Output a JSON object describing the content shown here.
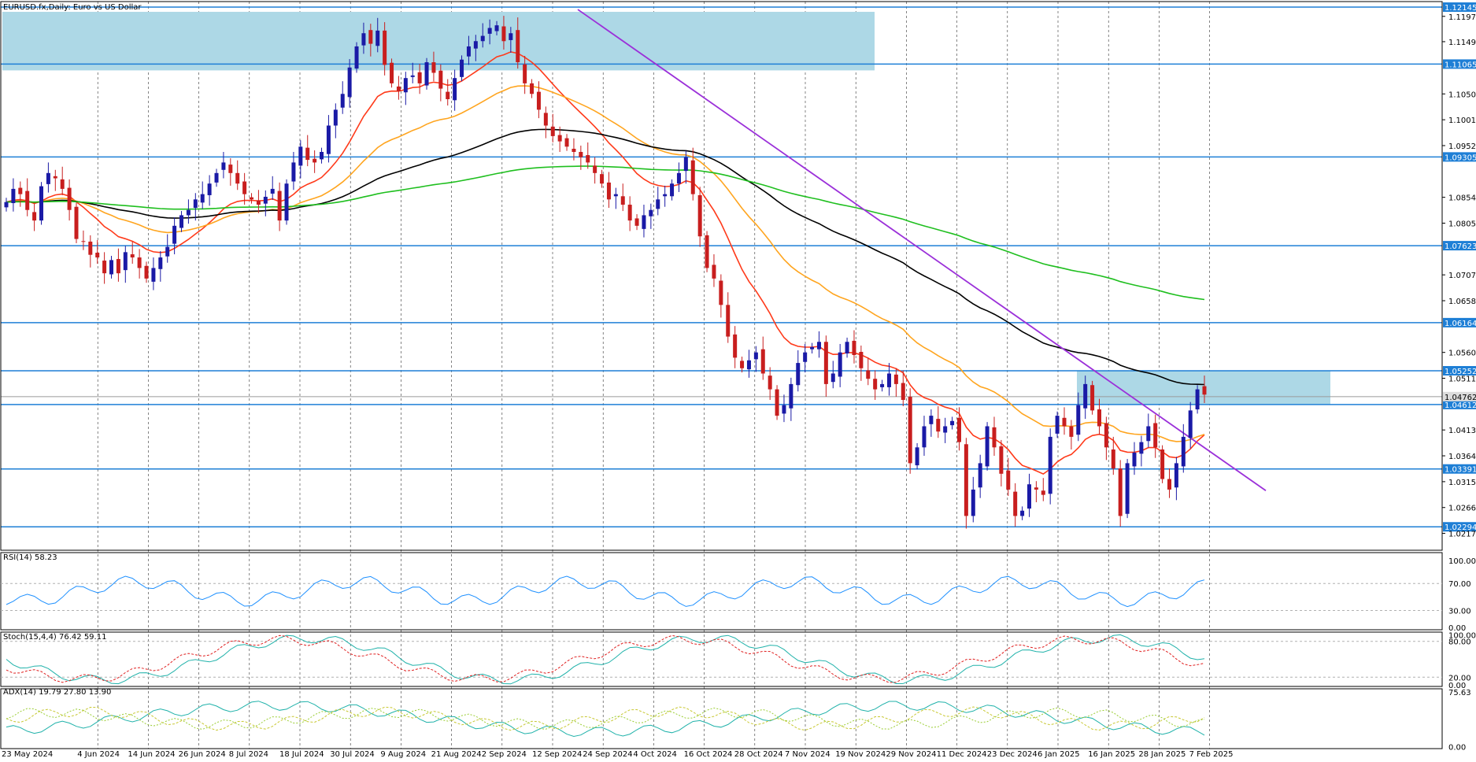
{
  "chart_data": {
    "type": "candlestick",
    "title": "EURUSD.fx,Daily:  Euro vs US Dollar",
    "x_tick_labels": [
      "23 May 2024",
      "4 Jun 2024",
      "14 Jun 2024",
      "26 Jun 2024",
      "8 Jul 2024",
      "18 Jul 2024",
      "30 Jul 2024",
      "9 Aug 2024",
      "21 Aug 2024",
      "2 Sep 2024",
      "12 Sep 2024",
      "24 Sep 2024",
      "4 Oct 2024",
      "16 Oct 2024",
      "28 Oct 2024",
      "7 Nov 2024",
      "19 Nov 2024",
      "29 Nov 2024",
      "11 Dec 2024",
      "23 Dec 2024",
      "6 Jan 2025",
      "16 Jan 2025",
      "28 Jan 2025",
      "7 Feb 2025"
    ],
    "y_ticks": [
      "1.11970",
      "1.11490",
      "1.10500",
      "1.10010",
      "1.09520",
      "1.08540",
      "1.08050",
      "1.07070",
      "1.06580",
      "1.05600",
      "1.05110",
      "1.04130",
      "1.03640",
      "1.03150",
      "1.02660",
      "1.02170"
    ],
    "y_range": [
      1.0185,
      1.1225
    ],
    "levels": [
      "1.12145",
      "1.11065",
      "1.09305",
      "1.07623",
      "1.06164",
      "1.05252",
      "1.04612",
      "1.03391",
      "1.02294"
    ],
    "current_price": "1.04762",
    "closes": [
      1.0845,
      1.087,
      1.086,
      1.083,
      1.081,
      1.0875,
      1.09,
      1.089,
      1.087,
      1.083,
      1.0775,
      1.077,
      1.0745,
      1.074,
      1.071,
      1.0735,
      1.071,
      1.075,
      1.074,
      1.072,
      1.07,
      1.072,
      1.074,
      1.076,
      1.08,
      1.082,
      1.083,
      1.085,
      1.086,
      1.088,
      1.09,
      1.092,
      1.09,
      1.088,
      1.086,
      1.085,
      1.084,
      1.0855,
      1.087,
      1.081,
      1.088,
      1.092,
      1.095,
      1.0925,
      1.092,
      1.094,
      1.099,
      1.102,
      1.105,
      1.11,
      1.114,
      1.1165,
      1.1145,
      1.117,
      1.1105,
      1.107,
      1.1055,
      1.108,
      1.1085,
      1.107,
      1.111,
      1.109,
      1.106,
      1.104,
      1.108,
      1.1115,
      1.114,
      1.115,
      1.116,
      1.1175,
      1.118,
      1.115,
      1.1165,
      1.111,
      1.107,
      1.105,
      1.102,
      1.099,
      1.097,
      1.096,
      1.095,
      1.094,
      1.093,
      1.092,
      1.09,
      1.088,
      1.085,
      1.086,
      1.084,
      1.081,
      1.08,
      1.082,
      1.083,
      1.085,
      1.086,
      1.088,
      1.09,
      1.093,
      1.086,
      1.078,
      1.072,
      1.07,
      1.065,
      1.059,
      1.055,
      1.053,
      1.0545,
      1.056,
      1.052,
      1.049,
      1.044,
      1.046,
      1.05,
      1.054,
      1.056,
      1.057,
      1.058,
      1.05,
      1.052,
      1.056,
      1.058,
      1.0555,
      1.053,
      1.051,
      1.049,
      1.05,
      1.052,
      1.05,
      1.047,
      1.035,
      1.038,
      1.042,
      1.044,
      1.041,
      1.042,
      1.043,
      1.039,
      1.025,
      1.03,
      1.035,
      1.042,
      1.038,
      1.033,
      1.03,
      1.025,
      1.026,
      1.031,
      1.03,
      1.029,
      1.04,
      1.044,
      1.042,
      1.04,
      1.046,
      1.05,
      1.045,
      1.042,
      1.038,
      1.034,
      1.025,
      1.035,
      1.037,
      1.039,
      1.042,
      1.038,
      1.032,
      1.03,
      1.035,
      1.04,
      1.045,
      1.049,
      1.048
    ],
    "ma_series": [
      {
        "color": "#ff3a1a"
      },
      {
        "color": "#ffa51f"
      },
      {
        "color": "#000000"
      },
      {
        "color": "#1fbf1f"
      }
    ],
    "rsi": {
      "label": "RSI(14) 58.23",
      "levels": [
        "100.00",
        "70.00",
        "30.00",
        "0.00"
      ]
    },
    "stoch": {
      "label": "Stoch(15,4,4) 76.42 59.11",
      "levels": [
        "100.00",
        "80.00",
        "20.00",
        "0.00"
      ]
    },
    "adx": {
      "label": "ADX(14) 19.79 27.80 13.90",
      "levels": [
        "75.63",
        "0.00"
      ]
    }
  }
}
